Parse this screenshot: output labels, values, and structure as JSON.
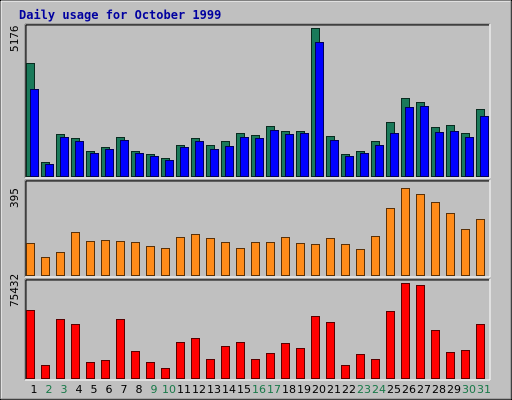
{
  "title": "Daily usage for October 1999",
  "chart_data": {
    "type": "bar",
    "title": "Daily usage for October 1999",
    "categories": [
      "1",
      "2",
      "3",
      "4",
      "5",
      "6",
      "7",
      "8",
      "9",
      "10",
      "11",
      "12",
      "13",
      "14",
      "15",
      "16",
      "17",
      "18",
      "19",
      "20",
      "21",
      "22",
      "23",
      "24",
      "25",
      "26",
      "27",
      "28",
      "29",
      "30",
      "31"
    ],
    "weekend_days": [
      "2",
      "3",
      "9",
      "10",
      "16",
      "17",
      "23",
      "24",
      "30",
      "31"
    ],
    "panels": [
      {
        "axis_label": "5176",
        "ymax": 5176,
        "series": [
          {
            "color": "#1a7a5a",
            "values": [
              3945,
              480,
              1480,
              1335,
              885,
              1030,
              1375,
              885,
              765,
              615,
              1085,
              1335,
              1085,
              1210,
              1490,
              1430,
              1760,
              1590,
              1590,
              5176,
              1400,
              780,
              860,
              1210,
              1880,
              2740,
              2600,
              1710,
              1770,
              1490,
              2340
            ]
          },
          {
            "color": "#0000ff",
            "values": [
              3045,
              420,
              1350,
              1230,
              820,
              950,
              1265,
              810,
              690,
              560,
              1010,
              1210,
              950,
              1060,
              1380,
              1340,
              1600,
              1470,
              1490,
              4680,
              1275,
              700,
              790,
              1070,
              1490,
              2400,
              2450,
              1550,
              1560,
              1370,
              2090
            ]
          }
        ]
      },
      {
        "axis_label": "395",
        "ymax": 395,
        "series": [
          {
            "color": "#ff8c1a",
            "values": [
              138,
              76,
              98,
              185,
              147,
              150,
              147,
              145,
              128,
              118,
              164,
              177,
              160,
              145,
              118,
              145,
              145,
              164,
              138,
              136,
              160,
              136,
              115,
              168,
              291,
              376,
              351,
              315,
              269,
              201,
              242
            ]
          }
        ]
      },
      {
        "axis_label": "75432",
        "ymax": 75432,
        "series": [
          {
            "color": "#ff0000",
            "values": [
              53900,
              10600,
              46500,
              42800,
              12800,
              13900,
              47100,
              21100,
              12800,
              8200,
              28900,
              31500,
              15000,
              25300,
              28900,
              15300,
              19800,
              27700,
              23900,
              49600,
              44700,
              10600,
              18800,
              14800,
              53000,
              75432,
              73700,
              37800,
              20700,
              21900,
              43100
            ]
          }
        ]
      }
    ]
  }
}
